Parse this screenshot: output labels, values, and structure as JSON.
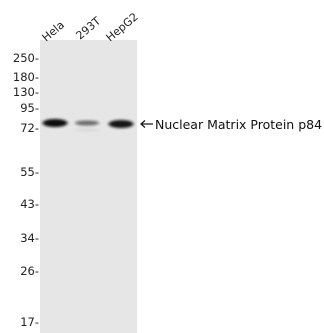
{
  "lanes": [
    "Hela",
    "293T",
    "HepG2"
  ],
  "markers": [
    "250-",
    "180-",
    "130-",
    "95-",
    "72-",
    "55-",
    "43-",
    "34-",
    "26-",
    "17-"
  ],
  "target": "Nuclear Matrix Protein p84",
  "band_intensity": [
    1.0,
    0.4,
    0.95
  ],
  "colors": {
    "membrane": "#e6e6e6",
    "band": "#111111",
    "text": "#222222"
  }
}
